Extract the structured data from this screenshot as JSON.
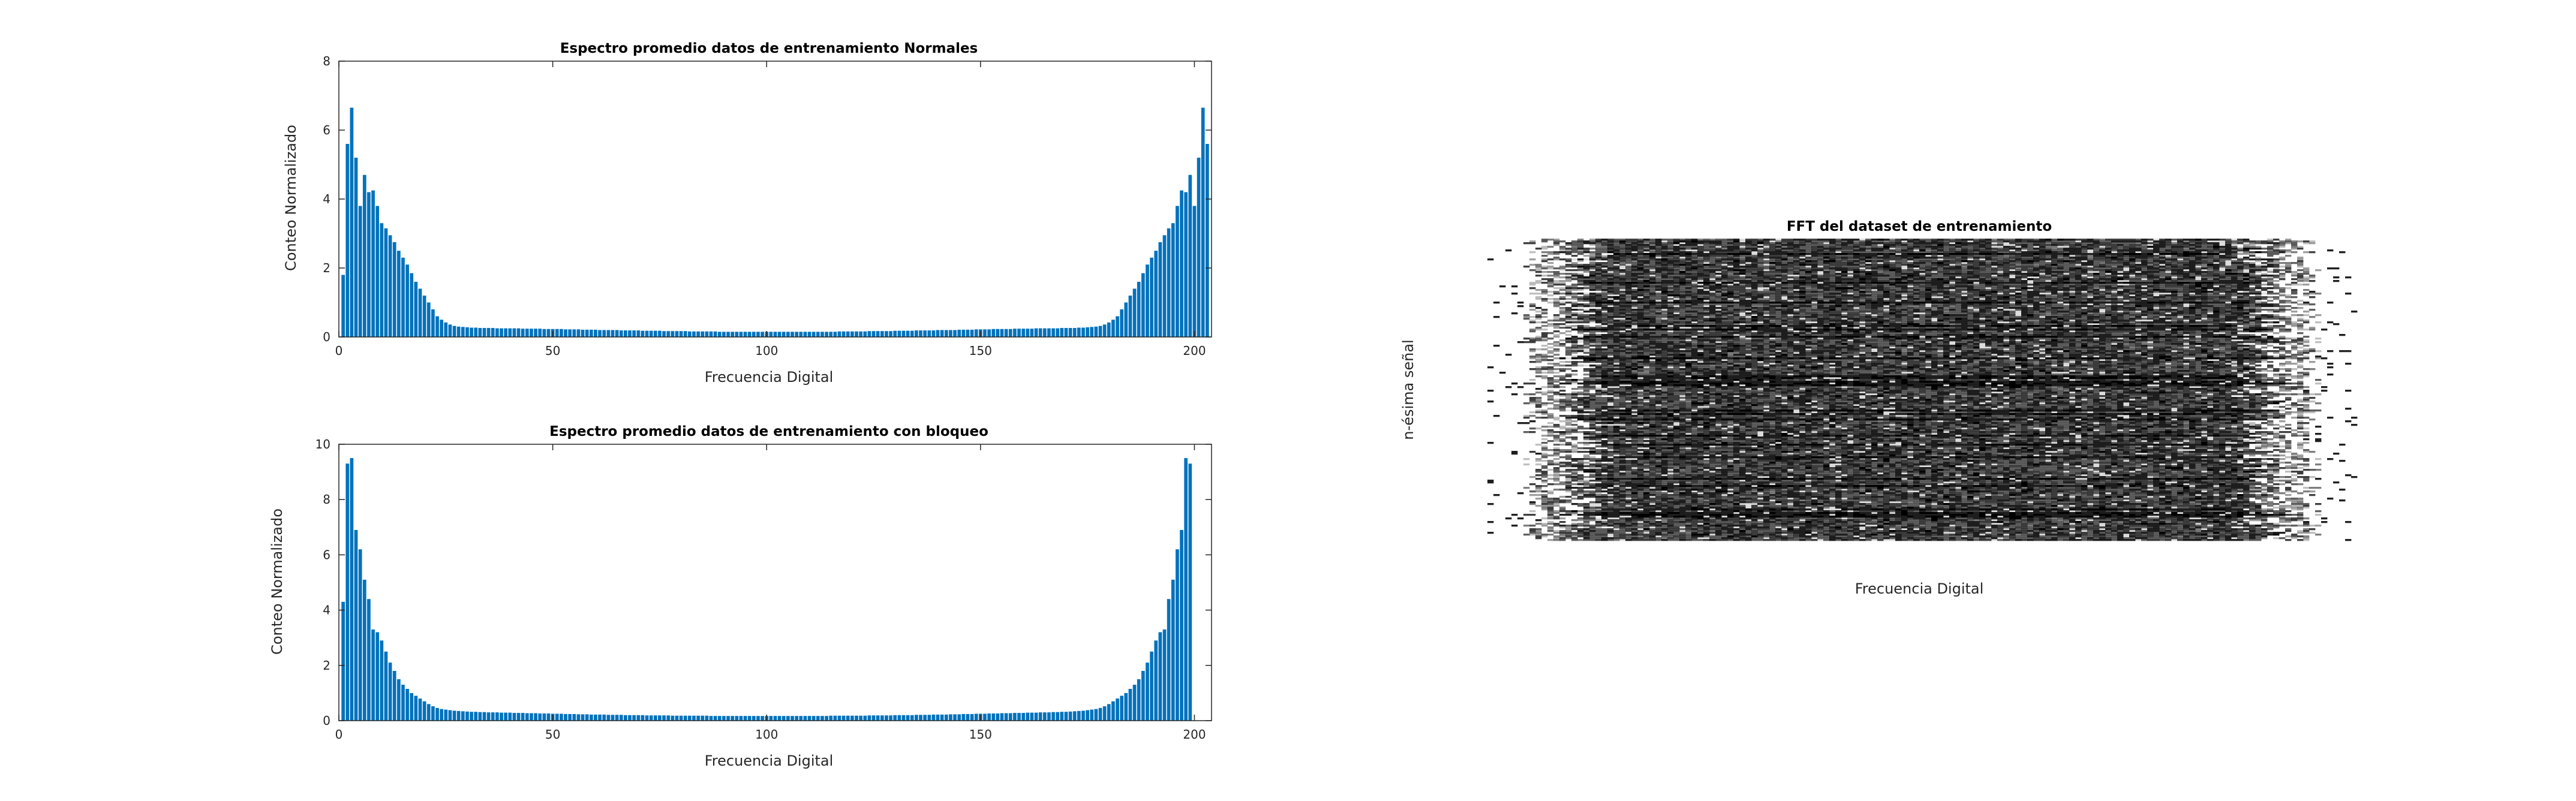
{
  "chart_data": [
    {
      "type": "bar",
      "title": "Espectro promedio datos de entrenamiento Normales",
      "xlabel": "Frecuencia Digital",
      "ylabel": "Conteo Normalizado",
      "xlim": [
        0,
        204
      ],
      "ylim": [
        0,
        8
      ],
      "xticks": [
        "0",
        "50",
        "100",
        "150",
        "200"
      ],
      "yticks": [
        "0",
        "2",
        "4",
        "6",
        "8"
      ],
      "color": "#0072BD",
      "values": [
        1.8,
        5.6,
        6.65,
        5.2,
        3.8,
        4.7,
        4.2,
        4.25,
        3.8,
        3.3,
        3.15,
        2.95,
        2.75,
        2.5,
        2.3,
        2.1,
        1.85,
        1.6,
        1.4,
        1.2,
        1.0,
        0.8,
        0.6,
        0.5,
        0.42,
        0.36,
        0.32,
        0.3,
        0.29,
        0.28,
        0.27,
        0.27,
        0.26,
        0.26,
        0.26,
        0.26,
        0.25,
        0.25,
        0.25,
        0.25,
        0.25,
        0.25,
        0.24,
        0.24,
        0.24,
        0.24,
        0.24,
        0.23,
        0.23,
        0.23,
        0.23,
        0.23,
        0.22,
        0.22,
        0.22,
        0.22,
        0.21,
        0.21,
        0.21,
        0.21,
        0.2,
        0.2,
        0.2,
        0.2,
        0.2,
        0.19,
        0.19,
        0.19,
        0.19,
        0.19,
        0.18,
        0.18,
        0.18,
        0.18,
        0.18,
        0.17,
        0.17,
        0.17,
        0.17,
        0.17,
        0.17,
        0.16,
        0.16,
        0.16,
        0.16,
        0.16,
        0.16,
        0.16,
        0.15,
        0.15,
        0.15,
        0.15,
        0.15,
        0.15,
        0.15,
        0.15,
        0.15,
        0.15,
        0.15,
        0.15,
        0.15,
        0.15,
        0.15,
        0.15,
        0.15,
        0.15,
        0.15,
        0.15,
        0.15,
        0.15,
        0.15,
        0.15,
        0.15,
        0.15,
        0.15,
        0.15,
        0.16,
        0.16,
        0.16,
        0.16,
        0.16,
        0.16,
        0.16,
        0.17,
        0.17,
        0.17,
        0.17,
        0.17,
        0.17,
        0.18,
        0.18,
        0.18,
        0.18,
        0.18,
        0.19,
        0.19,
        0.19,
        0.19,
        0.19,
        0.2,
        0.2,
        0.2,
        0.2,
        0.2,
        0.21,
        0.21,
        0.21,
        0.21,
        0.22,
        0.22,
        0.22,
        0.22,
        0.23,
        0.23,
        0.23,
        0.23,
        0.23,
        0.24,
        0.24,
        0.24,
        0.24,
        0.24,
        0.25,
        0.25,
        0.25,
        0.25,
        0.25,
        0.25,
        0.26,
        0.26,
        0.26,
        0.26,
        0.27,
        0.27,
        0.28,
        0.29,
        0.3,
        0.32,
        0.36,
        0.42,
        0.5,
        0.6,
        0.8,
        1.0,
        1.2,
        1.4,
        1.6,
        1.85,
        2.1,
        2.3,
        2.5,
        2.75,
        2.95,
        3.15,
        3.3,
        3.8,
        4.25,
        4.2,
        4.7,
        3.8,
        5.2,
        6.65,
        5.6
      ]
    },
    {
      "type": "bar",
      "title": "Espectro promedio datos de entrenamiento con bloqueo",
      "xlabel": "Frecuencia Digital",
      "ylabel": "Conteo Normalizado",
      "xlim": [
        0,
        204
      ],
      "ylim": [
        0,
        10
      ],
      "xticks": [
        "0",
        "50",
        "100",
        "150",
        "200"
      ],
      "yticks": [
        "0",
        "2",
        "4",
        "6",
        "8",
        "10"
      ],
      "color": "#0072BD",
      "values": [
        4.3,
        9.3,
        9.5,
        6.9,
        6.2,
        5.1,
        4.4,
        3.3,
        3.2,
        2.9,
        2.5,
        2.1,
        1.8,
        1.5,
        1.3,
        1.15,
        1.0,
        0.9,
        0.8,
        0.7,
        0.6,
        0.52,
        0.46,
        0.42,
        0.4,
        0.38,
        0.36,
        0.35,
        0.34,
        0.33,
        0.32,
        0.32,
        0.31,
        0.31,
        0.3,
        0.3,
        0.3,
        0.29,
        0.29,
        0.29,
        0.28,
        0.28,
        0.28,
        0.27,
        0.27,
        0.27,
        0.26,
        0.26,
        0.26,
        0.25,
        0.25,
        0.25,
        0.24,
        0.24,
        0.24,
        0.23,
        0.23,
        0.23,
        0.22,
        0.22,
        0.22,
        0.22,
        0.21,
        0.21,
        0.21,
        0.21,
        0.2,
        0.2,
        0.2,
        0.2,
        0.2,
        0.19,
        0.19,
        0.19,
        0.19,
        0.19,
        0.19,
        0.18,
        0.18,
        0.18,
        0.18,
        0.18,
        0.18,
        0.18,
        0.18,
        0.18,
        0.17,
        0.17,
        0.17,
        0.17,
        0.17,
        0.17,
        0.17,
        0.17,
        0.17,
        0.17,
        0.17,
        0.17,
        0.17,
        0.17,
        0.17,
        0.17,
        0.17,
        0.17,
        0.17,
        0.17,
        0.17,
        0.17,
        0.17,
        0.17,
        0.17,
        0.17,
        0.17,
        0.17,
        0.18,
        0.18,
        0.18,
        0.18,
        0.18,
        0.18,
        0.18,
        0.18,
        0.18,
        0.19,
        0.19,
        0.19,
        0.19,
        0.19,
        0.19,
        0.2,
        0.2,
        0.2,
        0.2,
        0.2,
        0.21,
        0.21,
        0.21,
        0.21,
        0.22,
        0.22,
        0.22,
        0.22,
        0.23,
        0.23,
        0.23,
        0.24,
        0.24,
        0.24,
        0.25,
        0.25,
        0.25,
        0.26,
        0.26,
        0.26,
        0.27,
        0.27,
        0.27,
        0.28,
        0.28,
        0.28,
        0.29,
        0.29,
        0.29,
        0.3,
        0.3,
        0.3,
        0.31,
        0.31,
        0.32,
        0.32,
        0.33,
        0.34,
        0.35,
        0.36,
        0.38,
        0.4,
        0.42,
        0.46,
        0.52,
        0.6,
        0.7,
        0.8,
        0.9,
        1.0,
        1.15,
        1.3,
        1.5,
        1.8,
        2.1,
        2.5,
        2.9,
        3.2,
        3.3,
        4.4,
        5.1,
        6.2,
        6.9,
        9.5,
        9.3
      ]
    },
    {
      "type": "heatmap",
      "title": "FFT del dataset de entrenamiento",
      "xlabel": "Frecuencia Digital",
      "ylabel": "n-ésima señal",
      "colormap": "gray",
      "background": "#ffffff",
      "shades": [
        "#ffffff",
        "#000000"
      ]
    }
  ]
}
